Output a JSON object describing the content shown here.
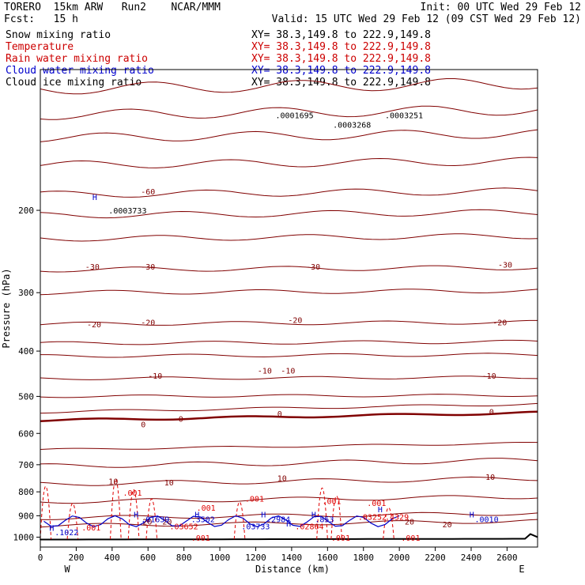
{
  "header": {
    "line1_left": "TORERO  15km ARW   Run2    NCAR/MMM",
    "line1_right": "Init: 00 UTC Wed 29 Feb 12",
    "line2_left": "Fcst:   15 h",
    "line2_right": "Valid: 15 UTC Wed 29 Feb 12 (09 CST Wed 29 Feb 12)"
  },
  "fields": [
    {
      "name": "Snow mixing ratio",
      "xy": "XY=  38.3,149.8 to 222.9,149.8",
      "color": "#000000"
    },
    {
      "name": "Temperature",
      "xy": "XY=  38.3,149.8 to 222.9,149.8",
      "color": "#cc0000"
    },
    {
      "name": "Rain water mixing ratio",
      "xy": "XY=  38.3,149.8 to 222.9,149.8",
      "color": "#cc0000"
    },
    {
      "name": "Cloud water mixing ratio",
      "xy": "XY=  38.3,149.8 to 222.9,149.8",
      "color": "#0000cc"
    },
    {
      "name": "Cloud ice mixing ratio",
      "xy": "XY=  38.3,149.8 to 222.9,149.8",
      "color": "#000000"
    }
  ],
  "colors": {
    "temperature": "#800000",
    "rain": "#e00000",
    "cloud": "#0000c8",
    "snow": "#000000"
  },
  "chart_data": {
    "type": "contour",
    "xlabel": "Distance (km)",
    "ylabel": "Pressure (hPa)",
    "xlim": [
      0,
      2770
    ],
    "ylim": [
      1050,
      100
    ],
    "x_ticks": [
      0,
      200,
      400,
      600,
      800,
      1000,
      1200,
      1400,
      1600,
      1800,
      2000,
      2200,
      2400,
      2600
    ],
    "y_ticks": [
      200,
      300,
      400,
      500,
      600,
      700,
      800,
      900,
      1000
    ],
    "y_log": true,
    "end_labels": {
      "west": "W",
      "east": "E"
    },
    "temperature_labels": [
      {
        "text": "-60",
        "x": 560,
        "p": 185
      },
      {
        "text": "-30",
        "x": 250,
        "p": 268
      },
      {
        "text": "-30",
        "x": 560,
        "p": 268
      },
      {
        "text": "-30",
        "x": 1480,
        "p": 268
      },
      {
        "text": "-30",
        "x": 2550,
        "p": 265
      },
      {
        "text": "-20",
        "x": 260,
        "p": 356
      },
      {
        "text": "-20",
        "x": 560,
        "p": 352
      },
      {
        "text": "-20",
        "x": 1380,
        "p": 348
      },
      {
        "text": "-20",
        "x": 2520,
        "p": 352
      },
      {
        "text": "-10",
        "x": 600,
        "p": 458
      },
      {
        "text": "-10",
        "x": 1210,
        "p": 447
      },
      {
        "text": "-10",
        "x": 1340,
        "p": 447
      },
      {
        "text": "-10",
        "x": 2460,
        "p": 458
      },
      {
        "text": "0",
        "x": 560,
        "p": 582
      },
      {
        "text": "0",
        "x": 770,
        "p": 567
      },
      {
        "text": "0",
        "x": 1320,
        "p": 552
      },
      {
        "text": "0",
        "x": 2500,
        "p": 547
      },
      {
        "text": "10",
        "x": 380,
        "p": 770
      },
      {
        "text": "10",
        "x": 690,
        "p": 775
      },
      {
        "text": "10",
        "x": 1320,
        "p": 758
      },
      {
        "text": "10",
        "x": 2480,
        "p": 754
      },
      {
        "text": "20",
        "x": 570,
        "p": 940
      },
      {
        "text": "20",
        "x": 680,
        "p": 940
      },
      {
        "text": "20",
        "x": 2030,
        "p": 940
      },
      {
        "text": "20",
        "x": 2240,
        "p": 952
      }
    ],
    "rain_labels": [
      {
        "text": ".001",
        "x": 460,
        "p": 815
      },
      {
        "text": ".001",
        "x": 1140,
        "p": 840
      },
      {
        "text": ".001",
        "x": 870,
        "p": 878
      },
      {
        "text": ".001",
        "x": 1570,
        "p": 850
      },
      {
        "text": ".001",
        "x": 1820,
        "p": 858
      },
      {
        "text": ".001",
        "x": 230,
        "p": 968
      },
      {
        "text": ".001",
        "x": 840,
        "p": 1018
      },
      {
        "text": ".001",
        "x": 1620,
        "p": 1018
      },
      {
        "text": ".001",
        "x": 2010,
        "p": 1018
      },
      {
        "text": ".03652",
        "x": 720,
        "p": 962
      },
      {
        "text": ".02864",
        "x": 1420,
        "p": 962
      },
      {
        "text": ".03252",
        "x": 1770,
        "p": 918
      },
      {
        "text": ".4329",
        "x": 1920,
        "p": 918
      }
    ],
    "cloud_labels": [
      {
        "text": ".1022",
        "x": 80,
        "p": 990
      },
      {
        "text": ".01639",
        "x": 560,
        "p": 928
      },
      {
        "text": ".3502",
        "x": 840,
        "p": 928
      },
      {
        "text": ".03733",
        "x": 1120,
        "p": 962
      },
      {
        "text": ".2984",
        "x": 1260,
        "p": 928
      },
      {
        "text": ".853",
        "x": 1530,
        "p": 928
      },
      {
        "text": ".0010",
        "x": 2420,
        "p": 928
      }
    ],
    "snow_labels": [
      {
        "text": ".0003733",
        "x": 380,
        "p": 203
      },
      {
        "text": ".0001695",
        "x": 1310,
        "p": 127
      },
      {
        "text": ".0003268",
        "x": 1630,
        "p": 133
      },
      {
        "text": ".0003251",
        "x": 1920,
        "p": 127
      }
    ],
    "highs": [
      {
        "text": "H",
        "x": 290,
        "p": 190
      },
      {
        "text": "H",
        "x": 50,
        "p": 970
      },
      {
        "text": "H",
        "x": 520,
        "p": 908
      },
      {
        "text": "H",
        "x": 860,
        "p": 908
      },
      {
        "text": "H",
        "x": 1230,
        "p": 908
      },
      {
        "text": "H",
        "x": 1370,
        "p": 948
      },
      {
        "text": "H",
        "x": 1510,
        "p": 908
      },
      {
        "text": "H",
        "x": 1880,
        "p": 885
      },
      {
        "text": "H",
        "x": 2390,
        "p": 908
      }
    ]
  }
}
